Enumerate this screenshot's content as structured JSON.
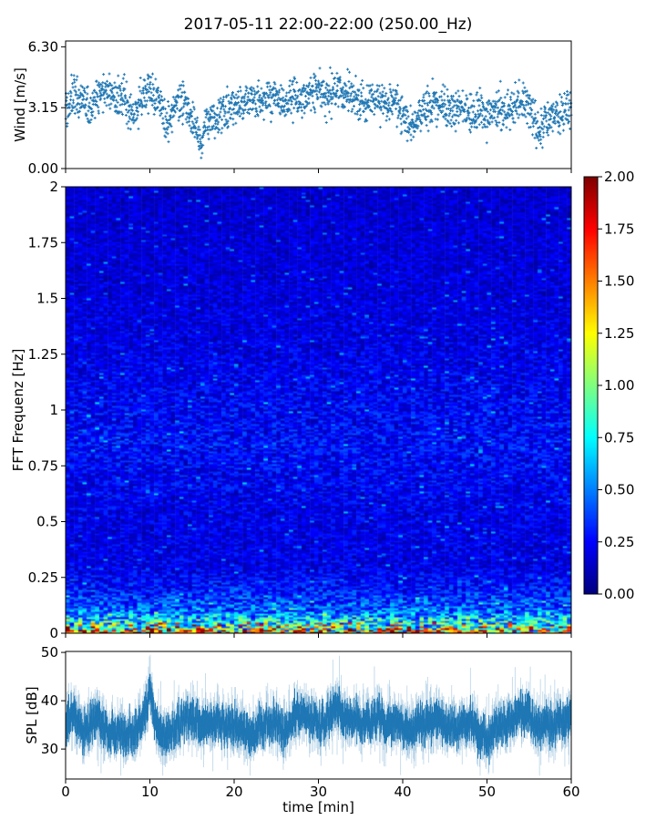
{
  "title": "2017-05-11 22:00-22:00 (250.00_Hz)",
  "chart_data": [
    {
      "type": "scatter",
      "name": "wind",
      "ylabel": "Wind [m/s]",
      "xlabel": "",
      "xlim": [
        0,
        60
      ],
      "ylim": [
        0,
        6.6
      ],
      "yticks": [
        "0.00",
        "3.15",
        "6.30"
      ],
      "ytick_values": [
        0,
        3.15,
        6.3
      ],
      "marker": "+",
      "color": "#1f77b4",
      "x_minutes": [
        0,
        1,
        2,
        3,
        4,
        5,
        6,
        7,
        8,
        9,
        10,
        11,
        12,
        13,
        14,
        15,
        16,
        17,
        18,
        19,
        20,
        21,
        22,
        23,
        24,
        25,
        26,
        27,
        28,
        29,
        30,
        31,
        32,
        33,
        34,
        35,
        36,
        37,
        38,
        39,
        40,
        41,
        42,
        43,
        44,
        45,
        46,
        47,
        48,
        49,
        50,
        51,
        52,
        53,
        54,
        55,
        56,
        57,
        58,
        59,
        60
      ],
      "mean_wind": [
        2.8,
        3.8,
        3.5,
        3.0,
        3.8,
        4.0,
        3.5,
        3.8,
        2.5,
        3.8,
        4.2,
        3.5,
        2.2,
        3.3,
        3.5,
        2.5,
        1.5,
        2.5,
        2.5,
        3.0,
        3.2,
        3.3,
        3.5,
        3.5,
        3.6,
        3.6,
        3.3,
        3.8,
        3.6,
        3.8,
        4.0,
        3.6,
        4.2,
        4.0,
        3.7,
        3.4,
        3.5,
        3.5,
        3.4,
        3.5,
        2.8,
        2.0,
        2.8,
        3.2,
        3.3,
        3.0,
        3.0,
        3.2,
        3.0,
        2.8,
        2.8,
        3.0,
        3.0,
        3.2,
        3.5,
        3.3,
        1.8,
        2.5,
        2.8,
        2.8,
        3.2
      ],
      "spread": 0.7
    },
    {
      "type": "heatmap",
      "name": "spectrogram",
      "ylabel": "FFT Frequenz [Hz]",
      "xlim": [
        0,
        60
      ],
      "ylim": [
        0,
        2
      ],
      "yticks": [
        "0",
        "0.25",
        "0.5",
        "0.75",
        "1",
        "1.25",
        "1.5",
        "1.75",
        "2"
      ],
      "ytick_values": [
        0,
        0.25,
        0.5,
        0.75,
        1,
        1.25,
        1.5,
        1.75,
        2
      ],
      "colormap": "jet",
      "vmin": 0,
      "vmax": 2,
      "frequency_hz": [
        0,
        0.02,
        0.05,
        0.1,
        0.2,
        0.3,
        0.5,
        0.75,
        0.85,
        1.0,
        1.25,
        1.5,
        1.75,
        2.0
      ],
      "mean_amplitude": [
        1.6,
        1.1,
        0.75,
        0.45,
        0.28,
        0.2,
        0.2,
        0.24,
        0.26,
        0.24,
        0.2,
        0.18,
        0.17,
        0.15
      ]
    },
    {
      "type": "colorbar",
      "name": "colorbar",
      "range": [
        0,
        2
      ],
      "ticks": [
        "0.00",
        "0.25",
        "0.50",
        "0.75",
        "1.00",
        "1.25",
        "1.50",
        "1.75",
        "2.00"
      ],
      "tick_values": [
        0,
        0.25,
        0.5,
        0.75,
        1,
        1.25,
        1.5,
        1.75,
        2
      ]
    },
    {
      "type": "line",
      "name": "spl",
      "ylabel": "SPL [dB]",
      "xlabel": "time [min]",
      "xlim": [
        0,
        60
      ],
      "ylim": [
        23.8,
        50.2
      ],
      "yticks": [
        "30",
        "40",
        "50"
      ],
      "ytick_values": [
        30,
        40,
        50
      ],
      "xticks": [
        "0",
        "10",
        "20",
        "30",
        "40",
        "50",
        "60"
      ],
      "xtick_values": [
        0,
        10,
        20,
        30,
        40,
        50,
        60
      ],
      "color": "#1f77b4",
      "x_minutes": [
        0,
        1,
        2,
        3,
        4,
        5,
        6,
        7,
        8,
        9,
        10,
        11,
        12,
        13,
        14,
        15,
        16,
        17,
        18,
        19,
        20,
        21,
        22,
        23,
        24,
        25,
        26,
        27,
        28,
        29,
        30,
        31,
        32,
        33,
        34,
        35,
        36,
        37,
        38,
        39,
        40,
        41,
        42,
        43,
        44,
        45,
        46,
        47,
        48,
        49,
        50,
        51,
        52,
        53,
        54,
        55,
        56,
        57,
        58,
        59,
        60
      ],
      "mean_spl": [
        35,
        38,
        33,
        36,
        37,
        33,
        33,
        34,
        33,
        35,
        42,
        33,
        33,
        34,
        36,
        36,
        35,
        35,
        36,
        35,
        35,
        34,
        32,
        35,
        35,
        36,
        33,
        36,
        38,
        36,
        35,
        36,
        39,
        37,
        36,
        35,
        35,
        37,
        35,
        35,
        35,
        34,
        35,
        36,
        36,
        35,
        34,
        35,
        36,
        33,
        32,
        34,
        35,
        36,
        38,
        37,
        35,
        35,
        35,
        36,
        37
      ]
    }
  ]
}
